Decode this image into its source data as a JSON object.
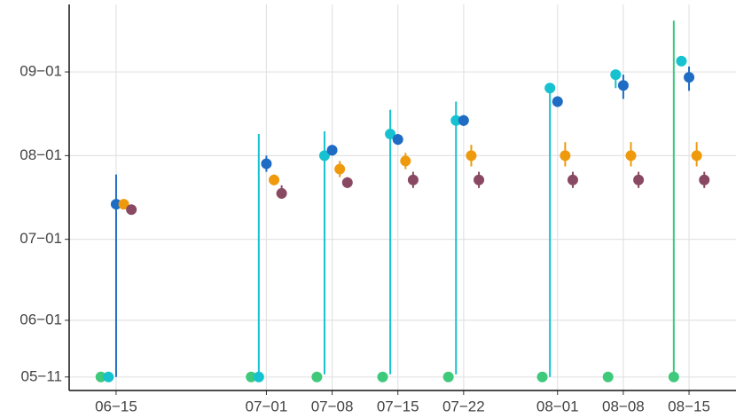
{
  "chart_data": {
    "type": "dot-errorbar",
    "x": [
      "06-15",
      "07-01",
      "07-08",
      "07-15",
      "07-22",
      "08-01",
      "08-08",
      "08-15"
    ],
    "xlim": [
      "06-10",
      "08-20"
    ],
    "xticks": [
      {
        "value": "06-15",
        "label": "06−15"
      },
      {
        "value": "07-01",
        "label": "07−01"
      },
      {
        "value": "07-08",
        "label": "07−08"
      },
      {
        "value": "07-15",
        "label": "07−15"
      },
      {
        "value": "07-22",
        "label": "07−22"
      },
      {
        "value": "08-01",
        "label": "08−01"
      },
      {
        "value": "08-08",
        "label": "08−08"
      },
      {
        "value": "08-15",
        "label": "08−15"
      }
    ],
    "ylim": [
      "05-06",
      "09-26"
    ],
    "yticks": [
      {
        "value": "05-11",
        "label": "05−11"
      },
      {
        "value": "06-01",
        "label": "06−01"
      },
      {
        "value": "07-01",
        "label": "07−01"
      },
      {
        "value": "08-01",
        "label": "08−01"
      },
      {
        "value": "09-01",
        "label": "09−01"
      }
    ],
    "grid": true,
    "series": [
      {
        "color": "#3ec97b",
        "values": [
          "05-11",
          "05-11",
          "05-11",
          "05-11",
          "05-11",
          "05-11",
          "05-11",
          "05-11"
        ],
        "lower": [
          null,
          null,
          null,
          null,
          null,
          null,
          null,
          "05-11"
        ],
        "upper": [
          null,
          null,
          null,
          null,
          null,
          null,
          null,
          "09-20"
        ]
      },
      {
        "color": "#16c2cf",
        "values": [
          "05-11",
          "05-11",
          "08-01",
          "08-09",
          "08-14",
          "08-26",
          "08-31",
          "09-05"
        ],
        "lower": [
          null,
          "05-11",
          "05-12",
          "05-12",
          "05-12",
          "05-11",
          "08-26",
          null
        ],
        "upper": [
          null,
          "08-09",
          "08-10",
          "08-18",
          "08-21",
          "08-26",
          "08-31",
          null
        ]
      },
      {
        "color": "#1f6cc4",
        "values": [
          "07-14",
          "07-29",
          "08-03",
          "08-07",
          "08-14",
          "08-21",
          "08-27",
          "08-30"
        ],
        "lower": [
          "05-11",
          "07-26",
          "08-01",
          "08-05",
          "08-12",
          "08-19",
          "08-22",
          "08-25"
        ],
        "upper": [
          "07-25",
          "08-01",
          "08-05",
          "08-09",
          "08-16",
          "08-23",
          "08-31",
          "09-03"
        ]
      },
      {
        "color": "#ef9a0d",
        "values": [
          "07-14",
          "07-23",
          "07-27",
          "07-30",
          "08-01",
          "08-01",
          "08-01",
          "08-01"
        ],
        "lower": [
          null,
          "07-21",
          "07-24",
          "07-27",
          "07-28",
          "07-28",
          "07-28",
          "07-28"
        ],
        "upper": [
          null,
          "07-25",
          "07-30",
          "08-02",
          "08-05",
          "08-06",
          "08-06",
          "08-06"
        ]
      },
      {
        "color": "#8a4963",
        "values": [
          "07-12",
          "07-18",
          "07-22",
          "07-23",
          "07-23",
          "07-23",
          "07-23",
          "07-23"
        ],
        "lower": [
          null,
          "07-16",
          "07-20",
          "07-20",
          "07-20",
          "07-20",
          "07-20",
          "07-20"
        ],
        "upper": [
          null,
          "07-21",
          "07-24",
          "07-26",
          "07-26",
          "07-26",
          "07-26",
          "07-26"
        ]
      }
    ]
  }
}
